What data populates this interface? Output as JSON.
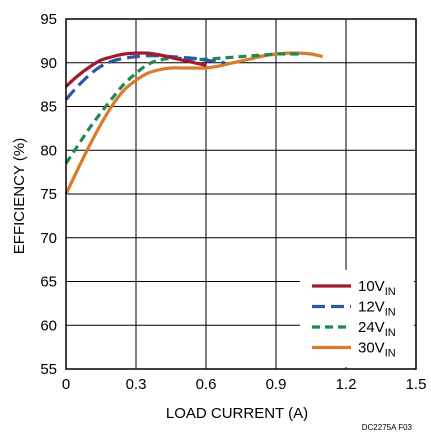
{
  "chart_data": {
    "type": "line",
    "title": "",
    "xlabel": "LOAD CURRENT (A)",
    "ylabel": "EFFICIENCY (%)",
    "xlim": [
      0,
      1.5
    ],
    "ylim": [
      55,
      95
    ],
    "xticks": [
      "0",
      "0.3",
      "0.6",
      "0.9",
      "1.2",
      "1.5"
    ],
    "yticks": [
      "55",
      "60",
      "65",
      "70",
      "75",
      "80",
      "85",
      "90",
      "95"
    ],
    "grid": true,
    "legend_position": "bottom-right",
    "series": [
      {
        "name": "10V",
        "name_sub": "IN",
        "color": "#a3192e",
        "dash": "solid",
        "points": [
          [
            0,
            87.3
          ],
          [
            0.05,
            88.5
          ],
          [
            0.1,
            89.5
          ],
          [
            0.15,
            90.3
          ],
          [
            0.2,
            90.7
          ],
          [
            0.25,
            91.0
          ],
          [
            0.3,
            91.1
          ],
          [
            0.35,
            91.1
          ],
          [
            0.4,
            90.9
          ],
          [
            0.45,
            90.6
          ],
          [
            0.5,
            90.3
          ],
          [
            0.55,
            90.0
          ],
          [
            0.6,
            89.7
          ]
        ]
      },
      {
        "name": "12V",
        "name_sub": "IN",
        "color": "#2f56a5",
        "dash": "long-dash",
        "points": [
          [
            0,
            85.8
          ],
          [
            0.05,
            87.3
          ],
          [
            0.1,
            88.6
          ],
          [
            0.15,
            89.6
          ],
          [
            0.2,
            90.2
          ],
          [
            0.25,
            90.5
          ],
          [
            0.3,
            90.7
          ],
          [
            0.35,
            90.8
          ],
          [
            0.4,
            90.8
          ],
          [
            0.45,
            90.7
          ],
          [
            0.5,
            90.6
          ],
          [
            0.55,
            90.5
          ],
          [
            0.6,
            90.3
          ],
          [
            0.65,
            90.1
          ],
          [
            0.68,
            90.0
          ]
        ]
      },
      {
        "name": "24V",
        "name_sub": "IN",
        "color": "#1e8a4d",
        "dash": "short-dash",
        "points": [
          [
            0,
            78.5
          ],
          [
            0.05,
            80.5
          ],
          [
            0.1,
            82.5
          ],
          [
            0.15,
            84.3
          ],
          [
            0.2,
            86.0
          ],
          [
            0.25,
            87.6
          ],
          [
            0.3,
            88.8
          ],
          [
            0.35,
            89.8
          ],
          [
            0.4,
            90.3
          ],
          [
            0.45,
            90.5
          ],
          [
            0.5,
            90.5
          ],
          [
            0.55,
            90.4
          ],
          [
            0.6,
            90.4
          ],
          [
            0.65,
            90.5
          ],
          [
            0.7,
            90.6
          ],
          [
            0.75,
            90.7
          ],
          [
            0.8,
            90.8
          ],
          [
            0.85,
            90.9
          ],
          [
            0.9,
            91.0
          ],
          [
            0.95,
            91.0
          ],
          [
            1.0,
            91.0
          ]
        ]
      },
      {
        "name": "30V",
        "name_sub": "IN",
        "color": "#d97a2c",
        "dash": "solid",
        "points": [
          [
            0,
            75.0
          ],
          [
            0.05,
            77.8
          ],
          [
            0.1,
            80.5
          ],
          [
            0.15,
            83.0
          ],
          [
            0.2,
            85.2
          ],
          [
            0.25,
            86.9
          ],
          [
            0.3,
            88.0
          ],
          [
            0.35,
            88.8
          ],
          [
            0.4,
            89.2
          ],
          [
            0.45,
            89.4
          ],
          [
            0.5,
            89.4
          ],
          [
            0.55,
            89.4
          ],
          [
            0.6,
            89.4
          ],
          [
            0.65,
            89.6
          ],
          [
            0.7,
            89.9
          ],
          [
            0.75,
            90.2
          ],
          [
            0.8,
            90.5
          ],
          [
            0.85,
            90.8
          ],
          [
            0.9,
            91.0
          ],
          [
            0.95,
            91.1
          ],
          [
            1.0,
            91.1
          ],
          [
            1.05,
            91.0
          ],
          [
            1.1,
            90.7
          ]
        ]
      }
    ],
    "footnote": "DC2275A F03"
  }
}
